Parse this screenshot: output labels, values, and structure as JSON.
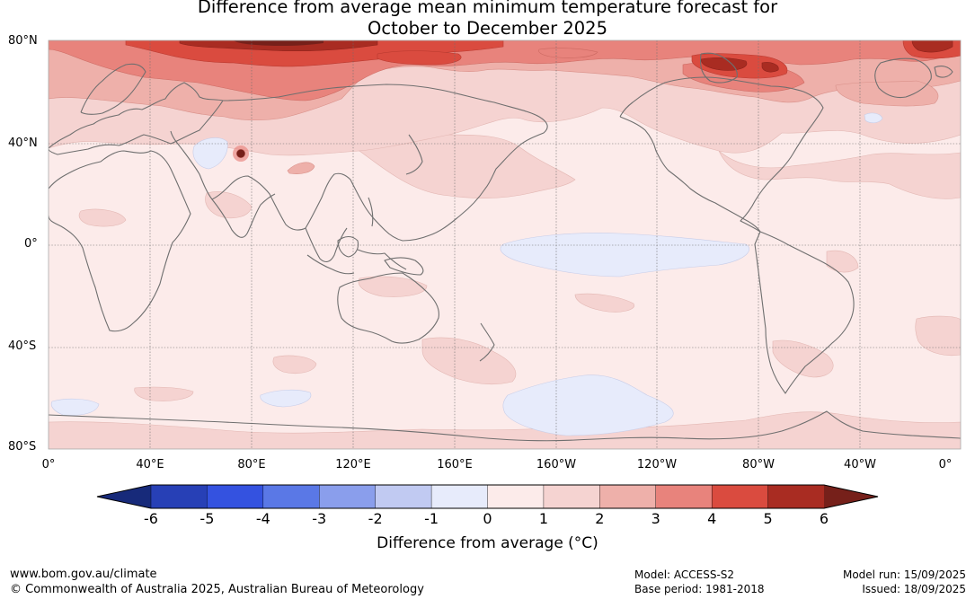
{
  "title": {
    "line1": "Difference from average mean minimum temperature forecast for",
    "line2": "October to December 2025"
  },
  "lat_labels": [
    "80°N",
    "40°N",
    "0°",
    "40°S",
    "80°S"
  ],
  "lon_labels": [
    "0°",
    "40°E",
    "80°E",
    "120°E",
    "160°E",
    "160°W",
    "120°W",
    "80°W",
    "40°W",
    "0°"
  ],
  "colorbar": {
    "ticks": [
      "-6",
      "-5",
      "-4",
      "-3",
      "-2",
      "-1",
      "0",
      "1",
      "2",
      "3",
      "4",
      "5",
      "6"
    ],
    "label": "Difference from average (°C)",
    "colors": [
      "#172a7a",
      "#2740b6",
      "#3452e0",
      "#5a78e6",
      "#8a9eec",
      "#c1caf2",
      "#e7ebfb",
      "#fcebea",
      "#f5d3d1",
      "#eeb0aa",
      "#e8837c",
      "#da4b3f",
      "#a92c22",
      "#76201a"
    ]
  },
  "footer": {
    "url": "www.bom.gov.au/climate",
    "copyright": "© Commonwealth of Australia 2025, Australian Bureau of Meteorology",
    "model": "Model: ACCESS-S2",
    "base_period": "Base period: 1981-2018",
    "model_run": "Model run: 15/09/2025",
    "issued": "Issued: 18/09/2025"
  }
}
